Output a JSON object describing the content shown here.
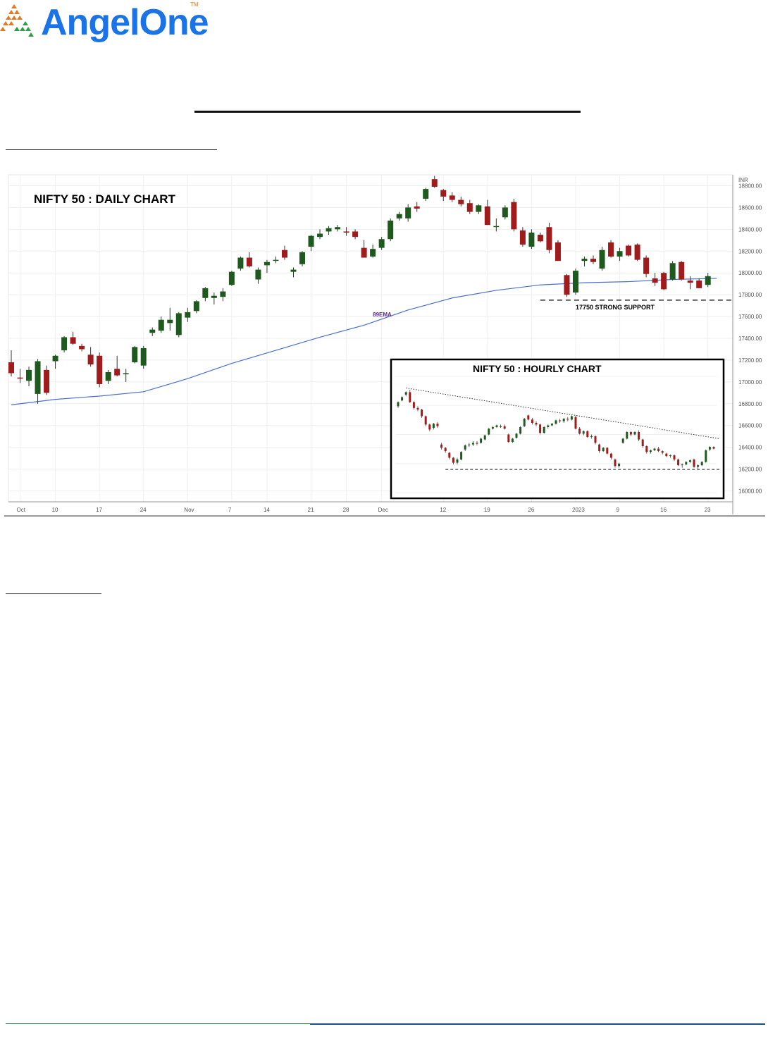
{
  "brand": {
    "name_part1": "Angel",
    "name_part2": "One",
    "tm": "TM",
    "colors": {
      "blue": "#1b73e8",
      "orange": "#e87722",
      "green": "#2e9e45"
    }
  },
  "chart_data": {
    "type": "candlestick",
    "title": "NIFTY 50 : DAILY CHART",
    "currency_label": "INR",
    "colors": {
      "up": "#1e5a1e",
      "down": "#a01b1b",
      "ema": "#4a6fd1",
      "support": "#000000"
    },
    "ylim": [
      15900,
      18900
    ],
    "y_ticks": [
      "18800.00",
      "18600.00",
      "18400.00",
      "18200.00",
      "18000.00",
      "17800.00",
      "17600.00",
      "17400.00",
      "17200.00",
      "17000.00",
      "16800.00",
      "16600.00",
      "16400.00",
      "16200.00",
      "16000.00"
    ],
    "x_ticks": [
      "Oct",
      "10",
      "17",
      "24",
      "Nov",
      "7",
      "14",
      "21",
      "28",
      "Dec",
      "12",
      "19",
      "26",
      "2023",
      "9",
      "16",
      "23"
    ],
    "x_tick_index": [
      2,
      10,
      20,
      30,
      40,
      50,
      58,
      68,
      76,
      84,
      98,
      108,
      118,
      128,
      138,
      148,
      158
    ],
    "candles": [
      [
        17180,
        17290,
        17050,
        17080
      ],
      [
        17040,
        17120,
        16990,
        17030
      ],
      [
        17010,
        17140,
        16960,
        17110
      ],
      [
        16890,
        17210,
        16800,
        17190
      ],
      [
        17110,
        17150,
        16880,
        16900
      ],
      [
        17190,
        17250,
        17120,
        17240
      ],
      [
        17290,
        17420,
        17270,
        17410
      ],
      [
        17410,
        17460,
        17340,
        17350
      ],
      [
        17330,
        17350,
        17280,
        17300
      ],
      [
        17250,
        17320,
        17140,
        17160
      ],
      [
        17240,
        17270,
        16950,
        16980
      ],
      [
        17010,
        17110,
        16980,
        17090
      ],
      [
        17120,
        17240,
        17050,
        17060
      ],
      [
        17070,
        17120,
        17000,
        17080
      ],
      [
        17180,
        17330,
        17170,
        17320
      ],
      [
        17150,
        17330,
        17120,
        17310
      ],
      [
        17450,
        17500,
        17420,
        17480
      ],
      [
        17470,
        17600,
        17450,
        17570
      ],
      [
        17540,
        17680,
        17470,
        17570
      ],
      [
        17430,
        17640,
        17410,
        17630
      ],
      [
        17590,
        17680,
        17550,
        17640
      ],
      [
        17650,
        17750,
        17630,
        17740
      ],
      [
        17770,
        17870,
        17740,
        17860
      ],
      [
        17770,
        17820,
        17710,
        17790
      ],
      [
        17780,
        17860,
        17740,
        17830
      ],
      [
        17890,
        18020,
        17880,
        18010
      ],
      [
        18040,
        18150,
        18020,
        18140
      ],
      [
        18140,
        18190,
        18050,
        18060
      ],
      [
        17940,
        18050,
        17900,
        18030
      ],
      [
        18070,
        18120,
        18000,
        18100
      ],
      [
        18120,
        18150,
        18090,
        18120
      ],
      [
        18210,
        18250,
        18120,
        18140
      ],
      [
        18010,
        18050,
        17960,
        18030
      ],
      [
        18080,
        18200,
        18060,
        18190
      ],
      [
        18240,
        18350,
        18200,
        18340
      ],
      [
        18330,
        18400,
        18310,
        18360
      ],
      [
        18380,
        18430,
        18350,
        18410
      ],
      [
        18400,
        18440,
        18380,
        18420
      ],
      [
        18380,
        18420,
        18340,
        18370
      ],
      [
        18380,
        18400,
        18310,
        18330
      ],
      [
        18230,
        18300,
        18150,
        18140
      ],
      [
        18150,
        18260,
        18140,
        18220
      ],
      [
        18230,
        18330,
        18210,
        18310
      ],
      [
        18310,
        18500,
        18290,
        18480
      ],
      [
        18500,
        18560,
        18480,
        18540
      ],
      [
        18500,
        18630,
        18470,
        18600
      ],
      [
        18610,
        18650,
        18560,
        18590
      ],
      [
        18680,
        18780,
        18660,
        18770
      ],
      [
        18860,
        18890,
        18780,
        18790
      ],
      [
        18760,
        18770,
        18660,
        18700
      ],
      [
        18710,
        18740,
        18650,
        18670
      ],
      [
        18670,
        18700,
        18610,
        18630
      ],
      [
        18640,
        18670,
        18540,
        18560
      ],
      [
        18560,
        18630,
        18540,
        18620
      ],
      [
        18610,
        18670,
        18440,
        18440
      ],
      [
        18430,
        18500,
        18380,
        18430
      ],
      [
        18510,
        18620,
        18490,
        18600
      ],
      [
        18650,
        18680,
        18380,
        18400
      ],
      [
        18390,
        18420,
        18240,
        18260
      ],
      [
        18240,
        18400,
        18220,
        18370
      ],
      [
        18350,
        18370,
        18280,
        18290
      ],
      [
        18420,
        18460,
        18180,
        18210
      ],
      [
        18280,
        18300,
        18120,
        18110
      ],
      [
        17980,
        17990,
        17780,
        17800
      ],
      [
        17820,
        18040,
        17800,
        18020
      ],
      [
        18110,
        18150,
        18060,
        18130
      ],
      [
        18130,
        18160,
        18080,
        18100
      ],
      [
        18040,
        18240,
        18020,
        18210
      ],
      [
        18280,
        18300,
        18140,
        18150
      ],
      [
        18150,
        18230,
        18110,
        18200
      ],
      [
        18250,
        18260,
        18150,
        18160
      ],
      [
        18260,
        18270,
        18110,
        18120
      ],
      [
        18140,
        18160,
        17960,
        17990
      ],
      [
        17950,
        18000,
        17880,
        17910
      ],
      [
        18000,
        18010,
        17840,
        17850
      ],
      [
        17940,
        18110,
        17930,
        18090
      ],
      [
        18100,
        18110,
        17930,
        17940
      ],
      [
        17930,
        17970,
        17850,
        17910
      ],
      [
        17930,
        17950,
        17860,
        17860
      ],
      [
        17890,
        18000,
        17870,
        17970
      ]
    ],
    "candle_x_index": [
      0,
      2,
      4,
      6,
      8,
      10,
      12,
      14,
      16,
      18,
      20,
      22,
      24,
      26,
      28,
      30,
      32,
      34,
      36,
      38,
      40,
      42,
      44,
      46,
      48,
      50,
      52,
      54,
      56,
      58,
      60,
      62,
      64,
      66,
      68,
      70,
      72,
      74,
      76,
      78,
      80,
      82,
      84,
      86,
      88,
      90,
      92,
      94,
      96,
      98,
      100,
      102,
      104,
      106,
      108,
      110,
      112,
      114,
      116,
      118,
      120,
      122,
      124,
      126,
      128,
      130,
      132,
      134,
      136,
      138,
      140,
      142,
      144,
      146,
      148,
      150,
      152,
      154,
      156,
      158,
      160
    ],
    "ema": {
      "label": "89EMA",
      "x_index": [
        0,
        10,
        20,
        30,
        40,
        50,
        60,
        70,
        80,
        90,
        100,
        110,
        120,
        130,
        140,
        150,
        160
      ],
      "values": [
        16790,
        16840,
        16870,
        16910,
        17030,
        17170,
        17290,
        17410,
        17520,
        17660,
        17770,
        17840,
        17890,
        17910,
        17920,
        17940,
        17950
      ]
    },
    "support": {
      "level": 17750,
      "label": "17750 STRONG SUPPORT"
    },
    "inset": {
      "title": "NIFTY 50 : HOURLY CHART",
      "ylim": [
        15900,
        17300
      ],
      "colors": {
        "up": "#1e5a1e",
        "down": "#a01b1b"
      },
      "candles": [
        [
          16940,
          17000,
          16920,
          16990
        ],
        [
          17010,
          17060,
          17000,
          17050
        ],
        [
          17080,
          17120,
          17060,
          17110
        ],
        [
          17110,
          17140,
          16980,
          16990
        ],
        [
          16990,
          17000,
          16900,
          16920
        ],
        [
          16920,
          16940,
          16880,
          16900
        ],
        [
          16900,
          16910,
          16800,
          16820
        ],
        [
          16820,
          16830,
          16700,
          16720
        ],
        [
          16720,
          16730,
          16640,
          16660
        ],
        [
          16680,
          16740,
          16660,
          16730
        ],
        [
          16730,
          16750,
          16680,
          16700
        ],
        [
          16480,
          16500,
          16420,
          16440
        ],
        [
          16440,
          16450,
          16380,
          16400
        ],
        [
          16380,
          16390,
          16300,
          16320
        ],
        [
          16320,
          16330,
          16240,
          16260
        ],
        [
          16260,
          16320,
          16240,
          16300
        ],
        [
          16300,
          16400,
          16290,
          16390
        ],
        [
          16420,
          16480,
          16400,
          16470
        ],
        [
          16470,
          16500,
          16450,
          16480
        ],
        [
          16480,
          16520,
          16460,
          16500
        ],
        [
          16500,
          16520,
          16470,
          16490
        ],
        [
          16500,
          16560,
          16490,
          16550
        ],
        [
          16540,
          16600,
          16530,
          16590
        ],
        [
          16600,
          16680,
          16590,
          16670
        ],
        [
          16670,
          16700,
          16660,
          16690
        ],
        [
          16690,
          16720,
          16680,
          16710
        ],
        [
          16700,
          16720,
          16680,
          16700
        ],
        [
          16700,
          16720,
          16660,
          16670
        ],
        [
          16600,
          16610,
          16500,
          16510
        ],
        [
          16510,
          16560,
          16500,
          16550
        ],
        [
          16560,
          16620,
          16550,
          16610
        ],
        [
          16610,
          16700,
          16600,
          16690
        ],
        [
          16700,
          16800,
          16690,
          16790
        ],
        [
          16830,
          16840,
          16770,
          16780
        ],
        [
          16780,
          16800,
          16720,
          16740
        ],
        [
          16740,
          16760,
          16700,
          16720
        ],
        [
          16720,
          16730,
          16600,
          16620
        ],
        [
          16620,
          16700,
          16610,
          16690
        ],
        [
          16690,
          16720,
          16670,
          16710
        ],
        [
          16710,
          16740,
          16700,
          16730
        ],
        [
          16730,
          16780,
          16720,
          16770
        ],
        [
          16770,
          16790,
          16740,
          16760
        ],
        [
          16760,
          16800,
          16740,
          16790
        ],
        [
          16790,
          16810,
          16760,
          16780
        ],
        [
          16780,
          16830,
          16770,
          16820
        ],
        [
          16810,
          16830,
          16660,
          16670
        ],
        [
          16670,
          16690,
          16600,
          16610
        ],
        [
          16610,
          16650,
          16590,
          16640
        ],
        [
          16640,
          16650,
          16560,
          16570
        ],
        [
          16570,
          16600,
          16550,
          16580
        ],
        [
          16580,
          16590,
          16480,
          16500
        ],
        [
          16480,
          16490,
          16380,
          16400
        ],
        [
          16400,
          16450,
          16390,
          16440
        ],
        [
          16440,
          16450,
          16360,
          16370
        ],
        [
          16370,
          16380,
          16300,
          16320
        ],
        [
          16300,
          16310,
          16200,
          16220
        ],
        [
          16220,
          16260,
          16200,
          16250
        ],
        [
          16500,
          16560,
          16490,
          16550
        ],
        [
          16550,
          16640,
          16540,
          16630
        ],
        [
          16630,
          16640,
          16580,
          16600
        ],
        [
          16600,
          16640,
          16590,
          16630
        ],
        [
          16630,
          16650,
          16520,
          16540
        ],
        [
          16540,
          16550,
          16440,
          16460
        ],
        [
          16460,
          16470,
          16370,
          16390
        ],
        [
          16390,
          16420,
          16370,
          16410
        ],
        [
          16410,
          16440,
          16400,
          16430
        ],
        [
          16430,
          16450,
          16390,
          16400
        ],
        [
          16400,
          16410,
          16360,
          16380
        ],
        [
          16370,
          16380,
          16330,
          16340
        ],
        [
          16340,
          16360,
          16320,
          16350
        ],
        [
          16350,
          16360,
          16280,
          16300
        ],
        [
          16300,
          16310,
          16220,
          16230
        ],
        [
          16230,
          16250,
          16200,
          16240
        ],
        [
          16240,
          16280,
          16230,
          16270
        ],
        [
          16270,
          16300,
          16260,
          16290
        ],
        [
          16300,
          16310,
          16200,
          16210
        ],
        [
          16210,
          16240,
          16190,
          16230
        ],
        [
          16230,
          16280,
          16220,
          16270
        ],
        [
          16270,
          16420,
          16260,
          16410
        ],
        [
          16420,
          16460,
          16400,
          16450
        ],
        [
          16450,
          16460,
          16420,
          16430
        ]
      ],
      "trendline": {
        "start": 17160,
        "end": 16550
      },
      "support_level": 16180
    }
  }
}
